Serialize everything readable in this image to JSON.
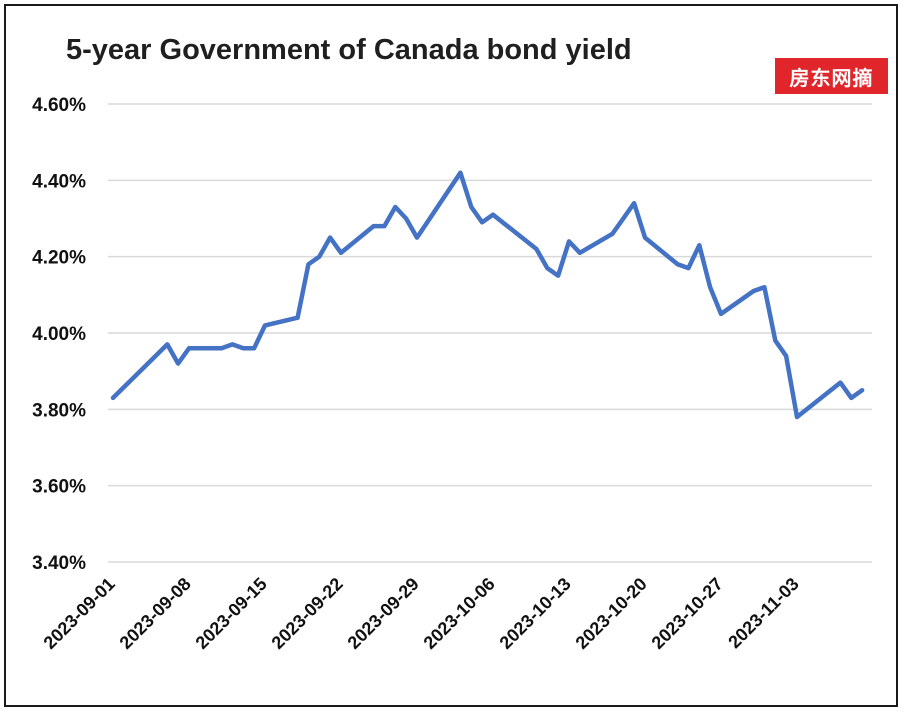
{
  "chart_data": {
    "type": "line",
    "title": "5-year Government of Canada  bond yield",
    "xlabel": "",
    "ylabel": "",
    "ylim": [
      3.4,
      4.6
    ],
    "y_ticks": [
      "3.40%",
      "3.60%",
      "3.80%",
      "4.00%",
      "4.20%",
      "4.40%",
      "4.60%"
    ],
    "x_tick_labels": [
      "2023-09-01",
      "2023-09-08",
      "2023-09-15",
      "2023-09-22",
      "2023-09-29",
      "2023-10-06",
      "2023-10-13",
      "2023-10-20",
      "2023-10-27",
      "2023-11-03"
    ],
    "grid": true,
    "legend": "none",
    "series": [
      {
        "color": "#4472c4",
        "points": [
          [
            "2023-09-01",
            3.83
          ],
          [
            "2023-09-06",
            3.97
          ],
          [
            "2023-09-07",
            3.92
          ],
          [
            "2023-09-08",
            3.96
          ],
          [
            "2023-09-11",
            3.96
          ],
          [
            "2023-09-12",
            3.97
          ],
          [
            "2023-09-13",
            3.96
          ],
          [
            "2023-09-14",
            3.96
          ],
          [
            "2023-09-15",
            4.02
          ],
          [
            "2023-09-18",
            4.04
          ],
          [
            "2023-09-19",
            4.18
          ],
          [
            "2023-09-20",
            4.2
          ],
          [
            "2023-09-21",
            4.25
          ],
          [
            "2023-09-22",
            4.21
          ],
          [
            "2023-09-25",
            4.28
          ],
          [
            "2023-09-26",
            4.28
          ],
          [
            "2023-09-27",
            4.33
          ],
          [
            "2023-09-28",
            4.3
          ],
          [
            "2023-09-29",
            4.25
          ],
          [
            "2023-10-03",
            4.42
          ],
          [
            "2023-10-04",
            4.33
          ],
          [
            "2023-10-05",
            4.29
          ],
          [
            "2023-10-06",
            4.31
          ],
          [
            "2023-10-10",
            4.22
          ],
          [
            "2023-10-11",
            4.17
          ],
          [
            "2023-10-12",
            4.15
          ],
          [
            "2023-10-13",
            4.24
          ],
          [
            "2023-10-14",
            4.21
          ],
          [
            "2023-10-17",
            4.26
          ],
          [
            "2023-10-18",
            4.3
          ],
          [
            "2023-10-19",
            4.34
          ],
          [
            "2023-10-20",
            4.25
          ],
          [
            "2023-10-23",
            4.18
          ],
          [
            "2023-10-24",
            4.17
          ],
          [
            "2023-10-25",
            4.23
          ],
          [
            "2023-10-26",
            4.12
          ],
          [
            "2023-10-27",
            4.05
          ],
          [
            "2023-10-30",
            4.11
          ],
          [
            "2023-10-31",
            4.12
          ],
          [
            "2023-11-01",
            3.98
          ],
          [
            "2023-11-02",
            3.94
          ],
          [
            "2023-11-03",
            3.78
          ],
          [
            "2023-11-07",
            3.87
          ],
          [
            "2023-11-08",
            3.83
          ],
          [
            "2023-11-09",
            3.85
          ]
        ]
      }
    ]
  },
  "watermark": {
    "text": "房东网摘",
    "color": "#e0252b"
  },
  "colors": {
    "line": "#4472c4",
    "grid": "#d9d9d9",
    "border": "#1a1a1a"
  }
}
